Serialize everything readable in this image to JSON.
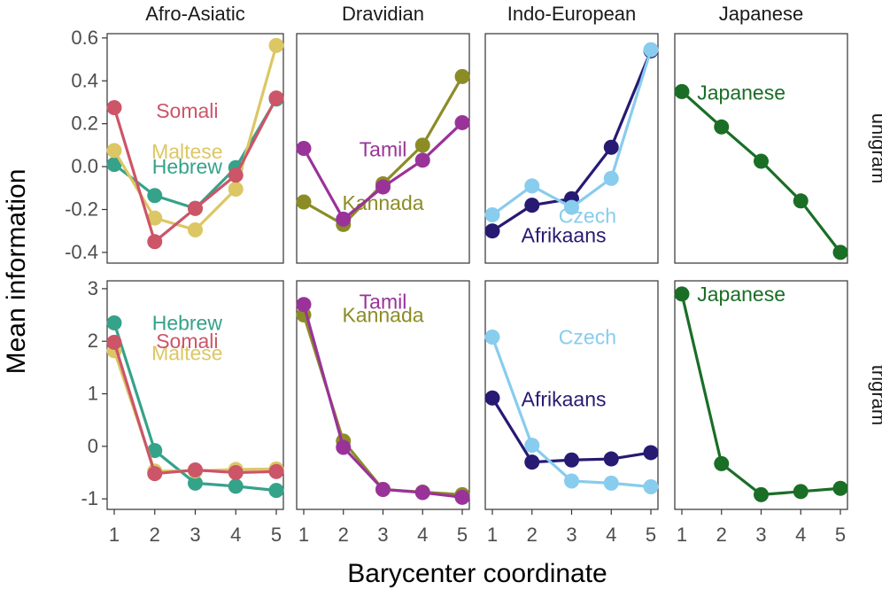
{
  "chart_data": {
    "type": "line",
    "facet_columns": [
      "Afro-Asiatic",
      "Dravidian",
      "Indo-European",
      "Japanese"
    ],
    "facet_rows": [
      "unigram",
      "trigram"
    ],
    "xlabel": "Barycenter coordinate",
    "ylabel": "Mean information",
    "x_ticks": [
      "1",
      "2",
      "3",
      "4",
      "5"
    ],
    "x": [
      1,
      2,
      3,
      4,
      5
    ],
    "grid": false,
    "rows": [
      {
        "name": "unigram",
        "ylim": [
          -0.45,
          0.62
        ],
        "y_ticks": [
          {
            "value": 0.6,
            "label": "0.6"
          },
          {
            "value": 0.4,
            "label": "0.4"
          },
          {
            "value": 0.2,
            "label": "0.2"
          },
          {
            "value": 0.0,
            "label": "0.0"
          },
          {
            "value": -0.2,
            "label": "-0.2"
          },
          {
            "value": -0.4,
            "label": "-0.4"
          }
        ],
        "panels": [
          {
            "family": "Afro-Asiatic",
            "series": [
              {
                "name": "Hebrew",
                "color": "#35a28a",
                "values": [
                  0.01,
                  -0.135,
                  -0.195,
                  -0.005,
                  0.315
                ],
                "label_pos": [
                  2.8,
                  0.0
                ]
              },
              {
                "name": "Maltese",
                "color": "#dcc764",
                "values": [
                  0.075,
                  -0.24,
                  -0.295,
                  -0.105,
                  0.565
                ],
                "label_pos": [
                  2.8,
                  0.07
                ]
              },
              {
                "name": "Somali",
                "color": "#cc5568",
                "values": [
                  0.275,
                  -0.35,
                  -0.195,
                  -0.04,
                  0.32
                ],
                "label_pos": [
                  2.8,
                  0.26
                ]
              }
            ]
          },
          {
            "family": "Dravidian",
            "series": [
              {
                "name": "Kannada",
                "color": "#8c8c26",
                "values": [
                  -0.165,
                  -0.27,
                  -0.08,
                  0.1,
                  0.42
                ],
                "label_pos": [
                  3.0,
                  -0.17
                ]
              },
              {
                "name": "Tamil",
                "color": "#993399",
                "values": [
                  0.085,
                  -0.245,
                  -0.095,
                  0.03,
                  0.205
                ],
                "label_pos": [
                  3.0,
                  0.08
                ]
              }
            ]
          },
          {
            "family": "Indo-European",
            "series": [
              {
                "name": "Afrikaans",
                "color": "#261a73",
                "values": [
                  -0.3,
                  -0.18,
                  -0.15,
                  0.09,
                  0.54
                ],
                "label_pos": [
                  2.8,
                  -0.32
                ]
              },
              {
                "name": "Czech",
                "color": "#88ccee",
                "values": [
                  -0.225,
                  -0.09,
                  -0.19,
                  -0.055,
                  0.545
                ],
                "label_pos": [
                  3.4,
                  -0.23
                ]
              }
            ]
          },
          {
            "family": "Japanese",
            "series": [
              {
                "name": "Japanese",
                "color": "#1a6e26",
                "values": [
                  0.35,
                  0.185,
                  0.025,
                  -0.16,
                  -0.4
                ],
                "label_pos": [
                  2.5,
                  0.345
                ]
              }
            ]
          }
        ]
      },
      {
        "name": "trigram",
        "ylim": [
          -1.2,
          3.15
        ],
        "y_ticks": [
          {
            "value": 3,
            "label": "3"
          },
          {
            "value": 2,
            "label": "2"
          },
          {
            "value": 1,
            "label": "1"
          },
          {
            "value": 0,
            "label": "0"
          },
          {
            "value": -1,
            "label": "-1"
          }
        ],
        "panels": [
          {
            "family": "Afro-Asiatic",
            "series": [
              {
                "name": "Hebrew",
                "color": "#35a28a",
                "values": [
                  2.35,
                  -0.08,
                  -0.7,
                  -0.76,
                  -0.84
                ],
                "label_pos": [
                  2.8,
                  2.35
                ]
              },
              {
                "name": "Maltese",
                "color": "#dcc764",
                "values": [
                  1.82,
                  -0.47,
                  -0.47,
                  -0.44,
                  -0.43
                ],
                "label_pos": [
                  2.8,
                  1.78
                ]
              },
              {
                "name": "Somali",
                "color": "#cc5568",
                "values": [
                  1.98,
                  -0.52,
                  -0.45,
                  -0.5,
                  -0.48
                ],
                "label_pos": [
                  2.8,
                  2.0
                ]
              }
            ]
          },
          {
            "family": "Dravidian",
            "series": [
              {
                "name": "Kannada",
                "color": "#8c8c26",
                "values": [
                  2.5,
                  0.1,
                  -0.82,
                  -0.87,
                  -0.92
                ],
                "label_pos": [
                  3.0,
                  2.5
                ]
              },
              {
                "name": "Tamil",
                "color": "#993399",
                "values": [
                  2.7,
                  -0.02,
                  -0.82,
                  -0.88,
                  -0.97
                ],
                "label_pos": [
                  3.0,
                  2.75
                ]
              }
            ]
          },
          {
            "family": "Indo-European",
            "series": [
              {
                "name": "Afrikaans",
                "color": "#261a73",
                "values": [
                  0.92,
                  -0.3,
                  -0.26,
                  -0.24,
                  -0.12
                ],
                "label_pos": [
                  2.8,
                  0.9
                ]
              },
              {
                "name": "Czech",
                "color": "#88ccee",
                "values": [
                  2.08,
                  0.02,
                  -0.66,
                  -0.7,
                  -0.77
                ],
                "label_pos": [
                  3.4,
                  2.08
                ]
              }
            ]
          },
          {
            "family": "Japanese",
            "series": [
              {
                "name": "Japanese",
                "color": "#1a6e26",
                "values": [
                  2.9,
                  -0.33,
                  -0.92,
                  -0.86,
                  -0.8
                ],
                "label_pos": [
                  2.5,
                  2.9
                ]
              }
            ]
          }
        ]
      }
    ]
  }
}
